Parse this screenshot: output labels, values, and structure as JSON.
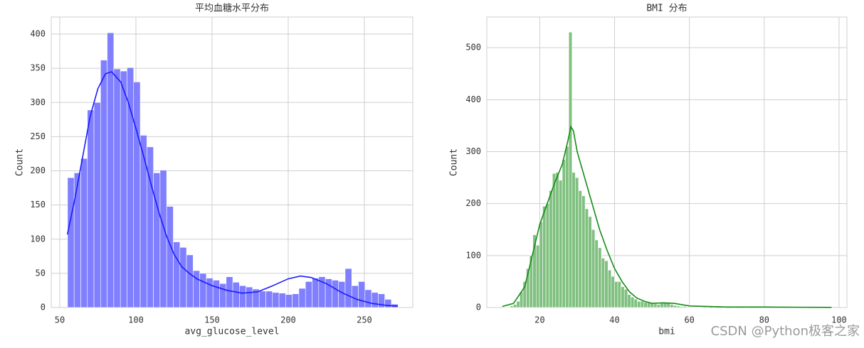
{
  "watermark": "CSDN @Python极客之家",
  "chart_data": [
    {
      "type": "histogram",
      "title": "平均血糖水平分布",
      "x_label": "avg_glucose_level",
      "y_label": "Count",
      "color": "#7f7fff",
      "line_color": "#1a1aff",
      "grid": true,
      "xlim": [
        44.4,
        281.8
      ],
      "ylim": [
        0,
        425
      ],
      "xticks": [
        50,
        100,
        150,
        200,
        250
      ],
      "yticks": [
        0,
        50,
        100,
        150,
        200,
        250,
        300,
        350,
        400
      ],
      "bins": [
        55.1,
        59.44,
        63.78,
        68.12,
        72.46,
        76.8,
        81.14,
        85.48,
        89.82,
        94.16,
        98.5,
        102.84,
        107.18,
        111.52,
        115.86,
        120.2,
        124.54,
        128.88,
        133.22,
        137.56,
        141.9,
        146.24,
        150.58,
        154.92,
        159.26,
        163.6,
        167.94,
        172.28,
        176.62,
        180.96,
        185.3,
        189.64,
        193.98,
        198.32,
        202.66,
        207,
        211.34,
        215.68,
        220.02,
        224.36,
        228.7,
        233.04,
        237.38,
        241.72,
        246.06,
        250.4,
        254.74,
        259.08,
        263.42,
        267.76,
        272.1
      ],
      "values": [
        190,
        197,
        218,
        289,
        300,
        362,
        402,
        349,
        346,
        351,
        330,
        252,
        235,
        197,
        201,
        148,
        96,
        88,
        77,
        54,
        50,
        43,
        40,
        35,
        45,
        37,
        32,
        30,
        27,
        24,
        24,
        22,
        21,
        19,
        20,
        28,
        38,
        43,
        45,
        42,
        40,
        38,
        57,
        32,
        38,
        26,
        22,
        20,
        12,
        5
      ],
      "kde": {
        "x": [
          55,
          60,
          65,
          70,
          75,
          80,
          84,
          90,
          95,
          100,
          105,
          110,
          115,
          120,
          125,
          130,
          135,
          140,
          150,
          160,
          170,
          180,
          190,
          200,
          208,
          215,
          225,
          235,
          245,
          255,
          265,
          272
        ],
        "values": [
          107,
          160,
          220,
          280,
          320,
          342,
          345,
          330,
          300,
          262,
          222,
          180,
          140,
          105,
          78,
          60,
          50,
          42,
          32,
          25,
          21,
          23,
          32,
          42,
          46,
          44,
          35,
          22,
          12,
          6,
          3,
          2
        ]
      }
    },
    {
      "type": "histogram",
      "title": "BMI 分布",
      "x_label": "bmi",
      "y_label": "Count",
      "color": "#80c080",
      "line_color": "#158a15",
      "grid": true,
      "xlim": [
        5.85,
        102.1
      ],
      "ylim": [
        0,
        559
      ],
      "xticks": [
        20,
        40,
        60,
        80,
        100
      ],
      "yticks": [
        0,
        100,
        200,
        300,
        400,
        500
      ],
      "bins": [
        10.3,
        11.173,
        12.046,
        12.919,
        13.792,
        14.665,
        15.538,
        16.411,
        17.284,
        18.157,
        19.03,
        19.903,
        20.776,
        21.649,
        22.522,
        23.395,
        24.268,
        25.141,
        26.014,
        26.887,
        27.76,
        28.633,
        29.506,
        30.379,
        31.252,
        32.125,
        32.998,
        33.871,
        34.744,
        35.617,
        36.49,
        37.363,
        38.236,
        39.109,
        39.982,
        40.855,
        41.728,
        42.601,
        43.474,
        44.347,
        45.22,
        46.093,
        46.966,
        47.839,
        48.712,
        49.585,
        50.458,
        51.331,
        52.204,
        53.077,
        53.95,
        54.823,
        55.696,
        56.569,
        57.442,
        58.315,
        59.188,
        60.061,
        60.934,
        61.807,
        62.68,
        63.553,
        64.426,
        65.299,
        66.172,
        67.045,
        67.918,
        68.791,
        69.664,
        70.537,
        71.41,
        72.283,
        73.156,
        74.029,
        74.902,
        75.775,
        76.648,
        77.521,
        78.394,
        79.267,
        80.14,
        81.013,
        81.886,
        82.759,
        83.632,
        84.505,
        85.378,
        86.251,
        87.124,
        87.997,
        88.87,
        89.743,
        90.616,
        91.489,
        92.362,
        93.235,
        94.108,
        94.981,
        95.854,
        96.727,
        97.6
      ],
      "values": [
        1,
        1,
        3,
        6,
        12,
        30,
        50,
        75,
        100,
        140,
        120,
        165,
        195,
        200,
        225,
        258,
        260,
        245,
        285,
        310,
        530,
        260,
        250,
        225,
        215,
        190,
        175,
        150,
        130,
        115,
        95,
        90,
        72,
        60,
        50,
        50,
        40,
        35,
        25,
        20,
        16,
        12,
        12,
        10,
        9,
        8,
        7,
        6,
        8,
        9,
        8,
        6,
        4,
        3,
        2,
        2,
        1,
        1,
        1,
        1,
        1,
        0,
        1,
        0,
        1,
        0,
        0,
        1,
        0,
        0,
        1,
        0,
        0,
        0,
        1,
        0,
        0,
        0,
        0,
        1,
        0,
        0,
        0,
        0,
        0,
        0,
        0,
        0,
        1,
        0,
        0,
        0,
        0,
        0,
        0,
        0,
        0,
        0,
        0,
        1
      ],
      "kde": {
        "x": [
          10,
          13,
          16,
          18,
          20,
          22,
          24,
          26,
          27.5,
          28.3,
          29,
          30,
          32,
          34,
          36,
          38,
          40,
          42,
          44,
          46,
          48,
          50,
          53,
          56,
          60,
          65,
          70,
          80,
          90,
          98
        ],
        "values": [
          2,
          8,
          40,
          100,
          160,
          200,
          240,
          275,
          320,
          348,
          340,
          300,
          250,
          200,
          150,
          110,
          75,
          50,
          30,
          18,
          12,
          8,
          9,
          8,
          3,
          2,
          1,
          1,
          0.5,
          0.3
        ]
      }
    }
  ]
}
